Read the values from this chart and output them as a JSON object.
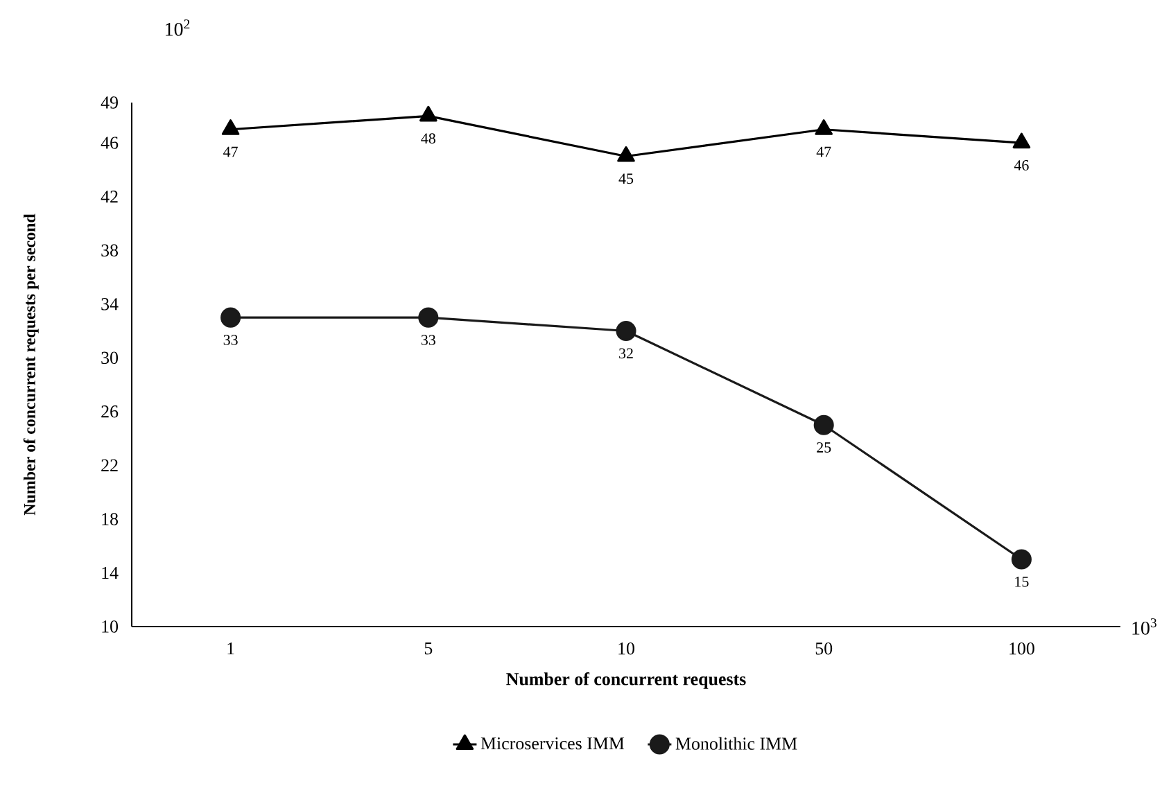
{
  "chart_data": {
    "type": "line",
    "xlabel": "Number of concurrent requests",
    "ylabel": "Number of concurrent requests per second",
    "categories": [
      "1",
      "5",
      "10",
      "50",
      "100"
    ],
    "series": [
      {
        "name": "Microservices IMM",
        "color": "#000000",
        "marker": "triangle",
        "values": [
          47,
          48,
          45,
          47,
          46
        ]
      },
      {
        "name": "Monolithic IMM",
        "color": "#1a1a1a",
        "marker": "circle",
        "values": [
          33,
          33,
          32,
          25,
          15
        ]
      }
    ],
    "ylim": [
      10,
      49
    ],
    "yticks": [
      10,
      14,
      18,
      22,
      26,
      30,
      34,
      38,
      42,
      46,
      49
    ],
    "annotations": [
      "10$^{2}$",
      "10$^{3}$"
    ],
    "data_labels": true,
    "grid": false,
    "legend": "bottom",
    "line_style": "solid"
  }
}
